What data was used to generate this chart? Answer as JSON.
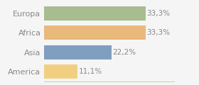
{
  "categories": [
    "Europa",
    "Africa",
    "Asia",
    "America"
  ],
  "values": [
    33.3,
    33.3,
    22.2,
    11.1
  ],
  "labels": [
    "33,3%",
    "33,3%",
    "22,2%",
    "11,1%"
  ],
  "bar_colors": [
    "#a8bc8f",
    "#e8b97a",
    "#7f9fbf",
    "#f0d080"
  ],
  "background_color": "#f5f5f5",
  "text_color": "#888888",
  "figsize": [
    2.8,
    1.2
  ],
  "dpi": 100,
  "xlim": [
    0,
    43
  ],
  "bar_height": 0.72,
  "label_fontsize": 7.5,
  "ytick_fontsize": 8
}
